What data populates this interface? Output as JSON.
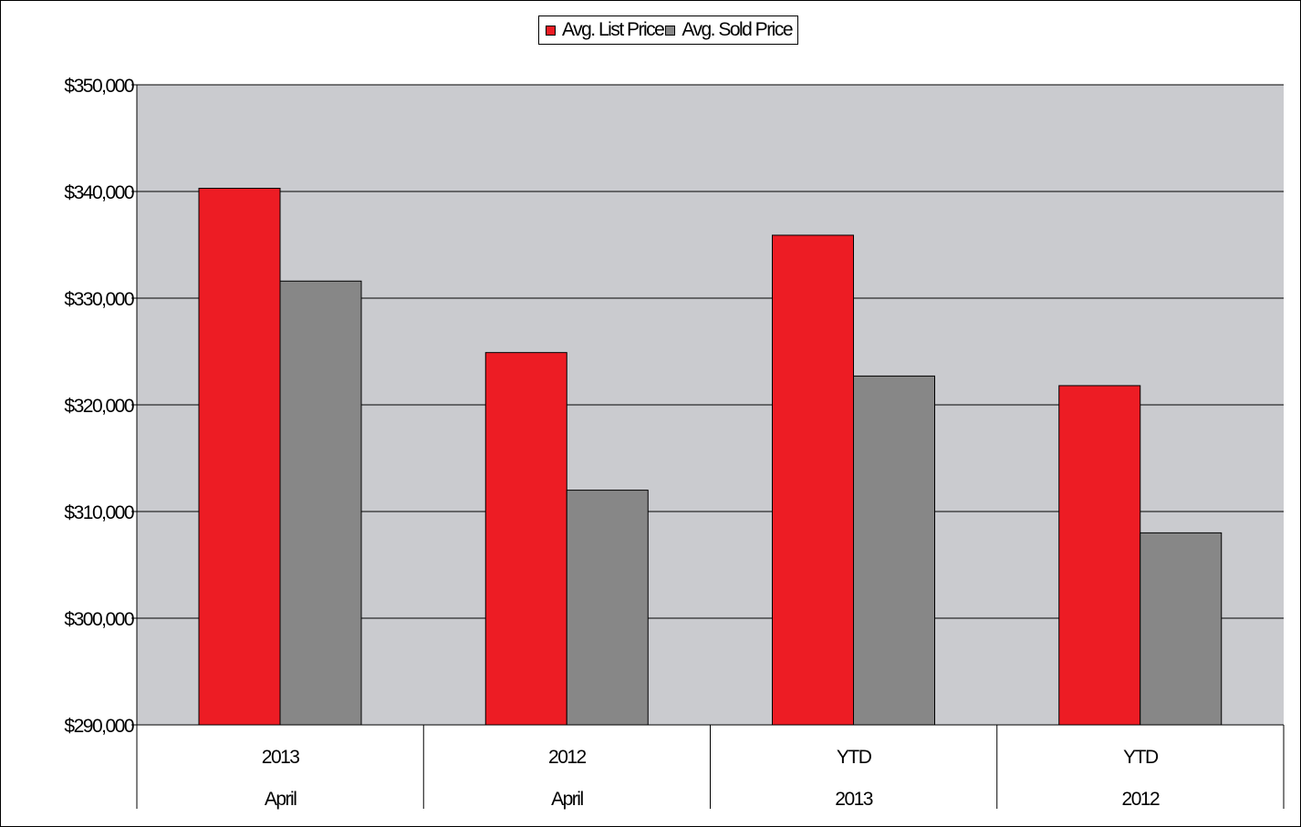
{
  "chart_data": {
    "type": "bar",
    "title": "",
    "xlabel": "",
    "ylabel": "",
    "categories": [
      [
        "2013",
        "April"
      ],
      [
        "2012",
        "April"
      ],
      [
        "YTD",
        "2013"
      ],
      [
        "YTD",
        "2012"
      ]
    ],
    "series": [
      {
        "name": "Avg. List Price",
        "color": "#ed1c24",
        "values": [
          340300,
          324900,
          335900,
          321800
        ]
      },
      {
        "name": "Avg. Sold Price",
        "color": "#878787",
        "values": [
          331600,
          312000,
          322700,
          308000
        ]
      }
    ],
    "ylim": [
      290000,
      350000
    ],
    "ytick_step": 10000,
    "yticks": [
      "$290,000",
      "$300,000",
      "$310,000",
      "$320,000",
      "$330,000",
      "$340,000",
      "$350,000"
    ],
    "grid": true,
    "plot_background": "#cacbcf",
    "legend_position": "top-center"
  }
}
